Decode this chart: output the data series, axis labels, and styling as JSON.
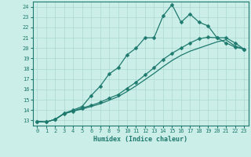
{
  "xlabel": "Humidex (Indice chaleur)",
  "bg_color": "#cceee8",
  "line_color": "#1e7a6e",
  "grid_color": "#aad8d0",
  "xlim": [
    -0.5,
    23.5
  ],
  "ylim": [
    12.5,
    24.5
  ],
  "xticks": [
    0,
    1,
    2,
    3,
    4,
    5,
    6,
    7,
    8,
    9,
    10,
    11,
    12,
    13,
    14,
    15,
    16,
    17,
    18,
    19,
    20,
    21,
    22,
    23
  ],
  "yticks": [
    13,
    14,
    15,
    16,
    17,
    18,
    19,
    20,
    21,
    22,
    23,
    24
  ],
  "line1_x": [
    0,
    1,
    2,
    3,
    4,
    5,
    6,
    7,
    8,
    9,
    10,
    11,
    12,
    13,
    14,
    15,
    16,
    17,
    18,
    19,
    20,
    21,
    22,
    23
  ],
  "line1_y": [
    12.9,
    12.85,
    13.1,
    13.7,
    14.0,
    14.35,
    15.4,
    16.3,
    17.5,
    18.1,
    19.35,
    20.0,
    21.0,
    21.0,
    23.1,
    24.2,
    22.5,
    23.3,
    22.5,
    22.15,
    21.0,
    20.5,
    20.1,
    19.9
  ],
  "line2_x": [
    0,
    1,
    2,
    3,
    4,
    5,
    6,
    7,
    8,
    9,
    10,
    11,
    12,
    13,
    14,
    15,
    16,
    17,
    18,
    19,
    20,
    21,
    22,
    23
  ],
  "line2_y": [
    12.9,
    12.85,
    13.1,
    13.65,
    13.9,
    14.2,
    14.45,
    14.75,
    15.15,
    15.5,
    16.1,
    16.7,
    17.4,
    18.1,
    18.9,
    19.5,
    20.0,
    20.5,
    20.9,
    21.05,
    21.0,
    21.0,
    20.5,
    19.9
  ],
  "line3_x": [
    0,
    1,
    2,
    3,
    4,
    5,
    6,
    7,
    8,
    9,
    10,
    11,
    12,
    13,
    14,
    15,
    16,
    17,
    18,
    19,
    20,
    21,
    22,
    23
  ],
  "line3_y": [
    12.9,
    12.85,
    13.1,
    13.65,
    13.9,
    14.1,
    14.35,
    14.6,
    14.95,
    15.3,
    15.8,
    16.35,
    16.95,
    17.55,
    18.2,
    18.8,
    19.3,
    19.7,
    20.0,
    20.3,
    20.6,
    20.8,
    20.2,
    19.9
  ],
  "marker_size": 2.5,
  "linewidth": 0.9,
  "tick_fontsize": 5,
  "xlabel_fontsize": 6
}
